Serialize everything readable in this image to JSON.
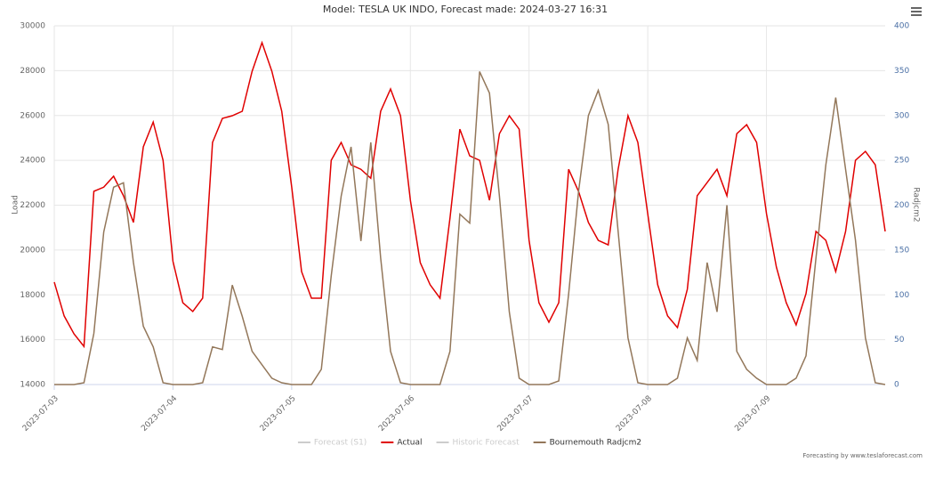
{
  "chart_data": {
    "type": "line",
    "title": "Model: TESLA UK INDO, Forecast made: 2024-03-27 16:31",
    "y_label": "Load",
    "y2_label": "Radjcm2",
    "credit": "Forecasting by www.teslaforecast.com",
    "categories": [
      "2023-07-03",
      null,
      null,
      null,
      null,
      null,
      null,
      null,
      null,
      null,
      null,
      null,
      "2023-07-04",
      null,
      null,
      null,
      null,
      null,
      null,
      null,
      null,
      null,
      null,
      null,
      "2023-07-05",
      null,
      null,
      null,
      null,
      null,
      null,
      null,
      null,
      null,
      null,
      null,
      "2023-07-06",
      null,
      null,
      null,
      null,
      null,
      null,
      null,
      null,
      null,
      null,
      null,
      "2023-07-07",
      null,
      null,
      null,
      null,
      null,
      null,
      null,
      null,
      null,
      null,
      null,
      "2023-07-08",
      null,
      null,
      null,
      null,
      null,
      null,
      null,
      null,
      null,
      null,
      null,
      "2023-07-09",
      null,
      null,
      null,
      null,
      null,
      null,
      null,
      null,
      null,
      null,
      null,
      null
    ],
    "series": [
      {
        "name": "Forecast (S1)",
        "visible": false
      },
      {
        "name": "Actual",
        "color": "#e00000",
        "values": [
          18570,
          17060,
          16260,
          15700,
          22620,
          22800,
          23290,
          22420,
          21230,
          24600,
          25710,
          24000,
          19500,
          17650,
          17260,
          17850,
          24800,
          25870,
          25990,
          26190,
          27970,
          29250,
          27970,
          26190,
          22810,
          19040,
          17850,
          17850,
          24000,
          24800,
          23800,
          23600,
          23200,
          26190,
          27180,
          25990,
          22220,
          19440,
          18450,
          17850,
          21420,
          25390,
          24200,
          24000,
          22220,
          25190,
          25990,
          25390,
          20430,
          17650,
          16780,
          17650,
          23600,
          22620,
          21230,
          20430,
          20230,
          23600,
          25990,
          24800,
          21620,
          18450,
          17060,
          16540,
          18250,
          22420,
          23010,
          23600,
          22420,
          25190,
          25590,
          24800,
          21620,
          19240,
          17650,
          16660,
          18050,
          20830,
          20430,
          19040,
          20830,
          24000,
          24400,
          23800,
          20830
        ]
      },
      {
        "name": "Historic Forecast",
        "visible": false
      },
      {
        "name": "Bournemouth Radjcm2",
        "color": "#93775a",
        "axis": "y2",
        "values": [
          0,
          0,
          0,
          2,
          57,
          170,
          220,
          225,
          136,
          65,
          42,
          2,
          0,
          0,
          0,
          2,
          42,
          39,
          111,
          76,
          37,
          22,
          7,
          2,
          0,
          0,
          0,
          17,
          121,
          210,
          265,
          160,
          270,
          141,
          37,
          2,
          0,
          0,
          0,
          0,
          37,
          190,
          180,
          349,
          325,
          210,
          81,
          7,
          0,
          0,
          0,
          4,
          101,
          215,
          300,
          328,
          290,
          171,
          52,
          2,
          0,
          0,
          0,
          7,
          52,
          27,
          136,
          81,
          200,
          37,
          17,
          7,
          0,
          0,
          0,
          7,
          32,
          141,
          245,
          320,
          240,
          161,
          52,
          2,
          0
        ]
      }
    ],
    "ylim": [
      14000,
      30000
    ],
    "yticks": [
      14000,
      16000,
      18000,
      20000,
      22000,
      24000,
      26000,
      28000,
      30000
    ],
    "y2lim": [
      0,
      400
    ],
    "y2ticks": [
      0,
      50,
      100,
      150,
      200,
      250,
      300,
      350,
      400
    ],
    "grid": true,
    "legend": "bottom"
  }
}
